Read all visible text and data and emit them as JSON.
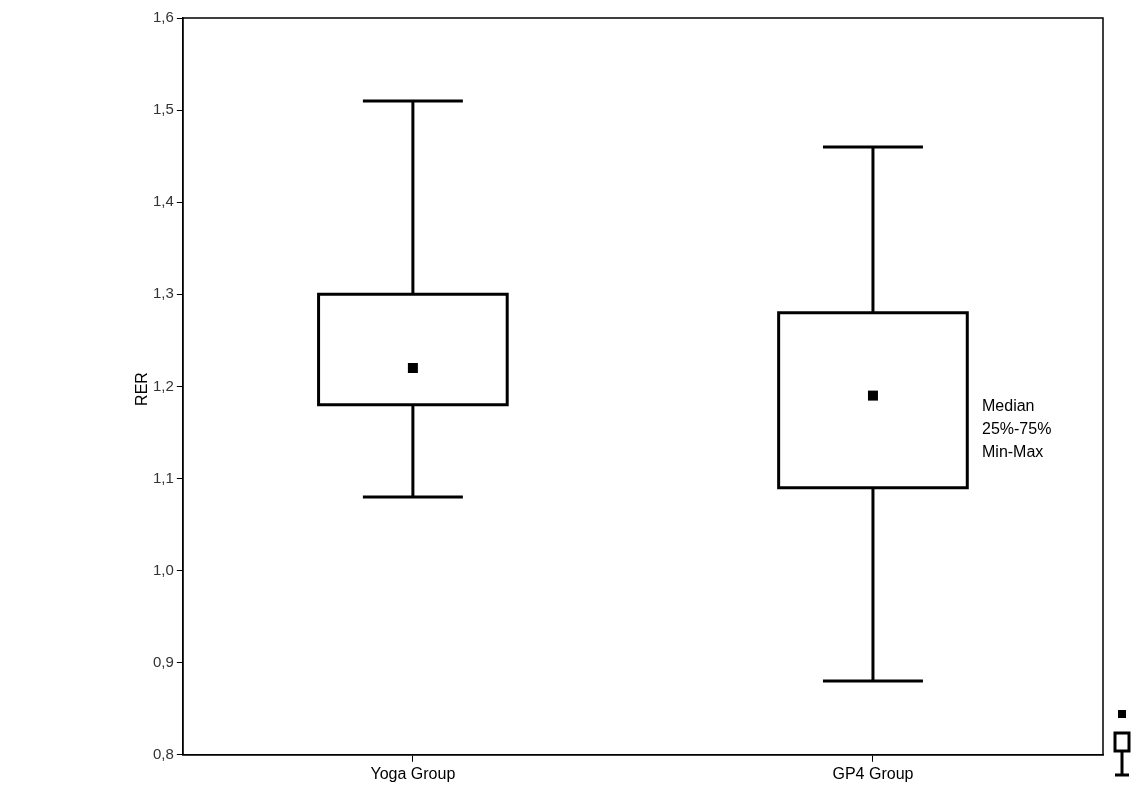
{
  "chart_data": {
    "type": "box",
    "ylabel": "RER",
    "categories": [
      "Yoga Group",
      "GP4 Group"
    ],
    "series": [
      {
        "color": "#ffffff",
        "boxes": [
          {
            "low": 1.08,
            "q1": 1.18,
            "median": 1.22,
            "q3": 1.3,
            "high": 1.51
          },
          {
            "low": 0.88,
            "q1": 1.09,
            "median": 1.19,
            "q3": 1.28,
            "high": 1.46
          }
        ]
      }
    ],
    "ylim": [
      0.8,
      1.6
    ],
    "yticks": [
      {
        "value": 0.8,
        "label": "0,8"
      },
      {
        "value": 0.9,
        "label": "0,9"
      },
      {
        "value": 1.0,
        "label": "1,0"
      },
      {
        "value": 1.1,
        "label": "1,1"
      },
      {
        "value": 1.2,
        "label": "1,2"
      },
      {
        "value": 1.3,
        "label": "1,3"
      },
      {
        "value": 1.4,
        "label": "1,4"
      },
      {
        "value": 1.5,
        "label": "1,5"
      },
      {
        "value": 1.6,
        "label": "1,6"
      }
    ],
    "grid": false,
    "annotations": [
      "Median",
      "25%-75%",
      "Min-Max"
    ]
  }
}
